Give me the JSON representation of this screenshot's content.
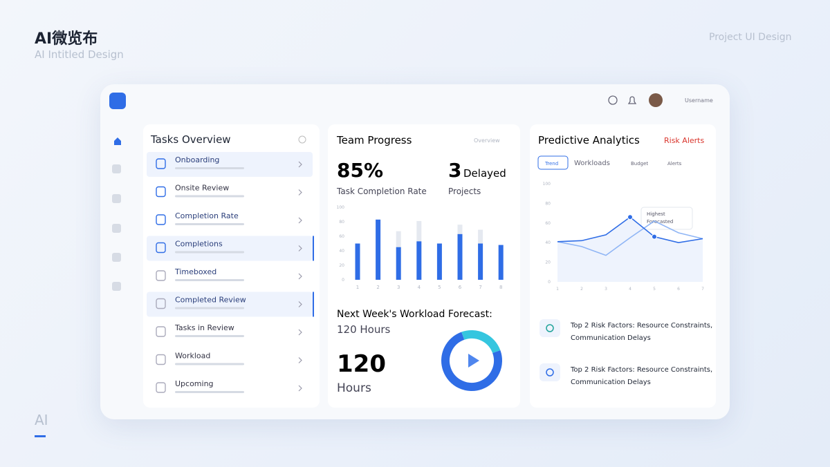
{
  "header": {
    "title": "AI微览布",
    "subtitle": "AI Intitled Design",
    "tag": "Project UI Design",
    "footer": "AI"
  },
  "topbar": {
    "user": "Username"
  },
  "tasks": {
    "title": "Tasks Overview",
    "items": [
      "Onboarding",
      "Onsite Review",
      "Completion Rate",
      "Completions",
      "Timeboxed",
      "Completed Review",
      "Tasks in Review",
      "Workload",
      "Upcoming"
    ]
  },
  "team": {
    "title": "Team Progress",
    "filter": "Overview",
    "rate": "85%",
    "rate_label": "Task Completion Rate",
    "delayed": "3",
    "delayed_word": "Delayed",
    "delayed_label": "Projects",
    "chart": {
      "ylim": [
        0,
        100
      ],
      "yticks": [
        0,
        20,
        40,
        60,
        80,
        100
      ],
      "categories": [
        "1",
        "2",
        "3",
        "4",
        "5",
        "6",
        "7",
        "8"
      ],
      "values": [
        50,
        83,
        45,
        53,
        50,
        63,
        50,
        48
      ],
      "capacity": [
        null,
        null,
        67,
        81,
        null,
        76,
        69,
        null
      ]
    },
    "forecast_title": "Next Week's Workload Forecast:",
    "forecast_sub": "120 Hours",
    "forecast_value": "120",
    "forecast_unit": "Hours",
    "donut": [
      75,
      25
    ]
  },
  "predictive": {
    "title": "Predictive Analytics",
    "alert": "Risk Alerts",
    "tabs": [
      "Trend",
      "Workloads",
      "Budget",
      "Alerts"
    ],
    "tooltip": [
      "Highest",
      "Forecasted"
    ],
    "chart": {
      "ylim": [
        0,
        100
      ],
      "yticks": [
        0,
        20,
        40,
        60,
        80,
        100
      ],
      "categories": [
        "1",
        "2",
        "3",
        "4",
        "5",
        "6",
        "7"
      ],
      "series": [
        {
          "color": "#2f6de6",
          "values": [
            41,
            42,
            48,
            66,
            46,
            40,
            44
          ]
        },
        {
          "color": "#8fb5f5",
          "values": [
            41,
            36,
            27,
            45,
            62,
            50,
            44
          ]
        }
      ]
    },
    "risks": [
      "Top 2 Risk Factors: Resource Constraints, Communication Delays",
      "Top 2 Risk Factors: Resource Constraints, Communication Delays"
    ]
  }
}
